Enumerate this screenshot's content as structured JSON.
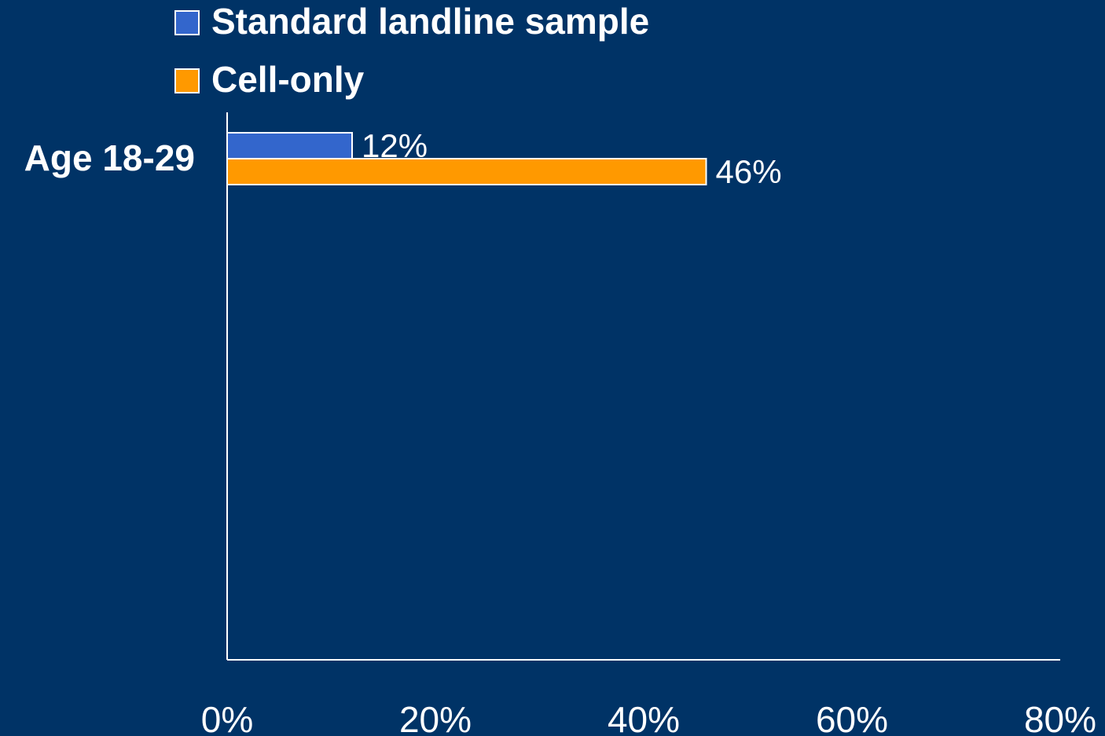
{
  "chart_data": {
    "type": "bar",
    "orientation": "horizontal",
    "categories": [
      "Age 18-29"
    ],
    "series": [
      {
        "name": "Standard landline sample",
        "values": [
          12
        ],
        "labels": [
          "12%"
        ],
        "color": "#3366cc"
      },
      {
        "name": "Cell-only",
        "values": [
          46
        ],
        "labels": [
          "46%"
        ],
        "color": "#ff9900"
      }
    ],
    "xlim": [
      0,
      80
    ],
    "xticks": [
      0,
      20,
      40,
      60,
      80
    ],
    "xtick_labels": [
      "0%",
      "20%",
      "40%",
      "60%",
      "80%"
    ],
    "legend_position": "top",
    "grid": false,
    "background": "#003366",
    "axis_color": "#ffffff"
  }
}
